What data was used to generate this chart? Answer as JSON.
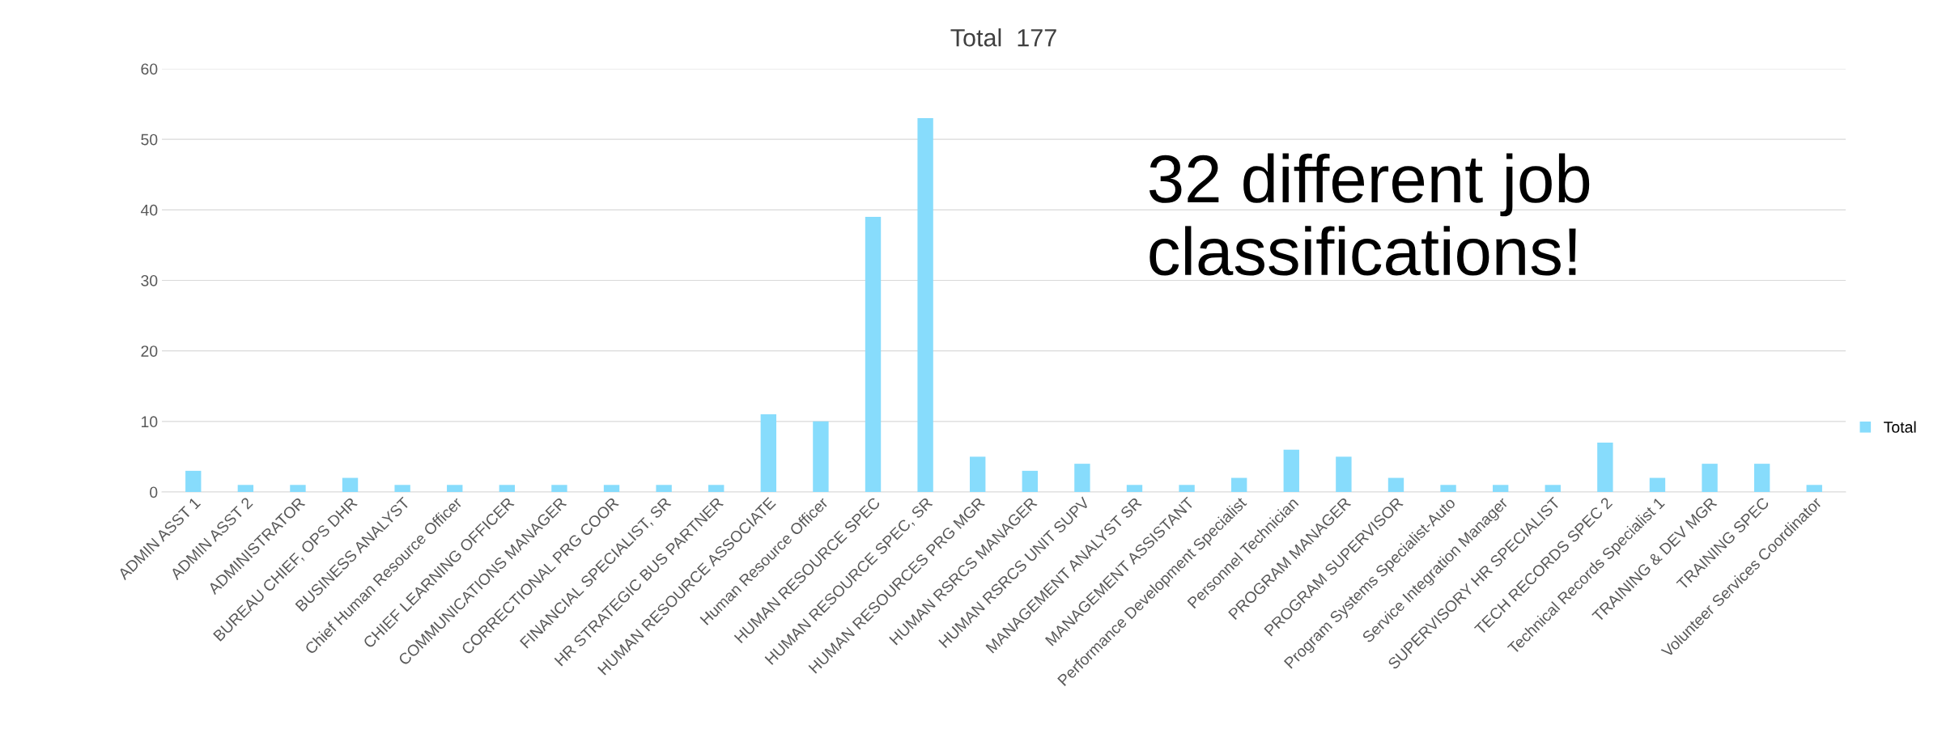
{
  "chart_data": {
    "type": "bar",
    "title": "Total  177",
    "categories": [
      "ADMIN ASST 1",
      "ADMIN ASST 2",
      "ADMINISTRATOR",
      "BUREAU CHIEF, OPS DHR",
      "BUSINESS ANALYST",
      "Chief Human Resource Officer",
      "CHIEF LEARNING OFFICER",
      "COMMUNICATIONS MANAGER",
      "CORRECTIONAL PRG COOR",
      "FINANCIAL SPECIALIST, SR",
      "HR STRATEGIC BUS PARTNER",
      "HUMAN RESOURCE ASSOCIATE",
      "Human Resource Officer",
      "HUMAN RESOURCE SPEC",
      "HUMAN RESOURCE SPEC, SR",
      "HUMAN RESOURCES PRG MGR",
      "HUMAN RSRCS MANAGER",
      "HUMAN RSRCS UNIT SUPV",
      "MANAGEMENT ANALYST SR",
      "MANAGEMENT ASSISTANT",
      "Performance Development Specialist",
      "Personnel Technician",
      "PROGRAM MANAGER",
      "PROGRAM SUPERVISOR",
      "Program Systems Specialist-Auto",
      "Service Integration Manager",
      "SUPERVISORY HR SPECIALIST",
      "TECH RECORDS SPEC 2",
      "Technical Records Specialist 1",
      "TRAINING & DEV MGR",
      "TRAINING SPEC",
      "Volunteer Services Coordinator"
    ],
    "series": [
      {
        "name": "Total",
        "color": "#87dcfc",
        "values": [
          3,
          1,
          1,
          2,
          1,
          1,
          1,
          1,
          1,
          1,
          1,
          11,
          10,
          39,
          53,
          5,
          3,
          4,
          1,
          1,
          2,
          6,
          5,
          2,
          1,
          1,
          1,
          7,
          2,
          4,
          4,
          1
        ]
      }
    ],
    "ylim": [
      0,
      60
    ],
    "yticks": [
      0,
      10,
      20,
      30,
      40,
      50,
      60
    ],
    "grid": "y",
    "legend": "right",
    "annotations": [
      "32 different job classifications!"
    ]
  }
}
